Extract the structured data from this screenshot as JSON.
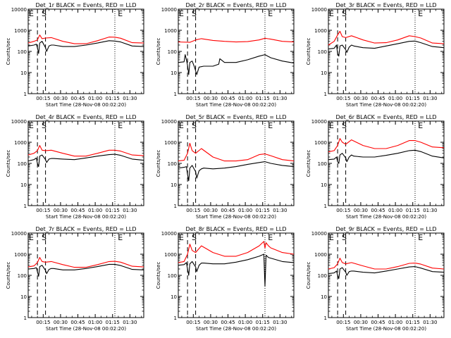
{
  "figure": {
    "common": {
      "ylabel": "Counts/sec",
      "xlabel": "Start Time (28-Nov-08 00:02:20)",
      "x_ticks": [
        "00:15",
        "00:30",
        "00:45",
        "01:00",
        "01:15",
        "01:30"
      ],
      "y_ticks": [
        "1",
        "10",
        "100",
        "1000",
        "10000"
      ],
      "markers": [
        "E",
        "S",
        "E"
      ]
    },
    "colors": {
      "events": "#000000",
      "lld": "#ff0000",
      "axes": "#000000",
      "background": "#ffffff"
    }
  },
  "chart_data": [
    {
      "type": "line",
      "title": "Det_1r BLACK = Events, RED = LLD",
      "xlabel": "Start Time (28-Nov-08 00:02:20)",
      "ylabel": "Counts/sec",
      "x_unit": "minutes after 00:02:20",
      "x_range": [
        0,
        100
      ],
      "yscale": "log",
      "ylim": [
        1,
        10000
      ],
      "vlines": {
        "dashed": [
          8,
          15
        ],
        "dotted": [
          75
        ]
      },
      "series": [
        {
          "name": "LLD",
          "color": "#ff0000",
          "x": [
            0,
            5,
            8,
            10,
            12,
            15,
            20,
            30,
            40,
            50,
            60,
            70,
            75,
            80,
            90,
            100
          ],
          "y": [
            250,
            300,
            350,
            600,
            400,
            430,
            450,
            300,
            230,
            230,
            320,
            480,
            470,
            420,
            260,
            250
          ]
        },
        {
          "name": "Events",
          "color": "#000000",
          "x": [
            0,
            5,
            7,
            8,
            9,
            10,
            12,
            15,
            16,
            18,
            20,
            22,
            30,
            40,
            50,
            60,
            70,
            75,
            80,
            90,
            100
          ],
          "y": [
            180,
            200,
            220,
            150,
            80,
            250,
            300,
            150,
            100,
            180,
            200,
            200,
            170,
            170,
            200,
            250,
            320,
            310,
            280,
            180,
            170
          ]
        }
      ]
    },
    {
      "type": "line",
      "title": "Det_2r BLACK = Events, RED = LLD",
      "xlabel": "Start Time (28-Nov-08 00:02:20)",
      "ylabel": "Counts/sec",
      "x_unit": "minutes after 00:02:20",
      "x_range": [
        0,
        100
      ],
      "yscale": "log",
      "ylim": [
        1,
        10000
      ],
      "vlines": {
        "dashed": [
          8,
          15
        ],
        "dotted": [
          75
        ]
      },
      "series": [
        {
          "name": "LLD",
          "color": "#ff0000",
          "x": [
            0,
            10,
            15,
            20,
            30,
            40,
            50,
            60,
            70,
            75,
            80,
            90,
            100
          ],
          "y": [
            280,
            270,
            350,
            400,
            330,
            300,
            280,
            290,
            350,
            420,
            380,
            300,
            280
          ]
        },
        {
          "name": "Events",
          "color": "#000000",
          "x": [
            0,
            5,
            6,
            7,
            8,
            9,
            10,
            12,
            14,
            15,
            16,
            18,
            22,
            30,
            35,
            36,
            40,
            50,
            60,
            70,
            75,
            80,
            90,
            100
          ],
          "y": [
            30,
            32,
            70,
            40,
            22,
            8,
            30,
            35,
            18,
            12,
            8,
            18,
            20,
            20,
            25,
            45,
            30,
            30,
            40,
            60,
            70,
            50,
            35,
            28
          ]
        }
      ]
    },
    {
      "type": "line",
      "title": "Det_3r BLACK = Events, RED = LLD",
      "xlabel": "Start Time (28-Nov-08 00:02:20)",
      "ylabel": "Counts/sec",
      "x_unit": "minutes after 00:02:20",
      "x_range": [
        0,
        100
      ],
      "yscale": "log",
      "ylim": [
        1,
        10000
      ],
      "vlines": {
        "dashed": [
          8,
          15
        ],
        "dotted": [
          75
        ]
      },
      "series": [
        {
          "name": "LLD",
          "color": "#ff0000",
          "x": [
            0,
            5,
            8,
            10,
            12,
            15,
            20,
            30,
            40,
            50,
            60,
            70,
            75,
            80,
            90,
            100
          ],
          "y": [
            200,
            300,
            600,
            900,
            500,
            450,
            550,
            350,
            250,
            260,
            350,
            550,
            500,
            430,
            250,
            230
          ]
        },
        {
          "name": "Events",
          "color": "#000000",
          "x": [
            0,
            5,
            7,
            8,
            9,
            10,
            12,
            15,
            16,
            18,
            20,
            22,
            30,
            40,
            50,
            60,
            70,
            75,
            80,
            90,
            100
          ],
          "y": [
            130,
            140,
            200,
            80,
            60,
            180,
            200,
            120,
            90,
            160,
            200,
            180,
            150,
            140,
            180,
            230,
            300,
            310,
            260,
            170,
            150
          ]
        }
      ]
    },
    {
      "type": "line",
      "title": "Det_4r BLACK = Events, RED = LLD",
      "xlabel": "Start Time (28-Nov-08 00:02:20)",
      "ylabel": "Counts/sec",
      "x_unit": "minutes after 00:02:20",
      "x_range": [
        0,
        100
      ],
      "yscale": "log",
      "ylim": [
        1,
        10000
      ],
      "vlines": {
        "dashed": [
          8,
          15
        ],
        "dotted": [
          75
        ]
      },
      "series": [
        {
          "name": "LLD",
          "color": "#ff0000",
          "x": [
            0,
            5,
            8,
            10,
            12,
            15,
            20,
            30,
            40,
            50,
            60,
            70,
            75,
            80,
            90,
            100
          ],
          "y": [
            250,
            300,
            400,
            700,
            420,
            400,
            420,
            300,
            220,
            220,
            300,
            420,
            420,
            380,
            250,
            230
          ]
        },
        {
          "name": "Events",
          "color": "#000000",
          "x": [
            0,
            5,
            7,
            8,
            9,
            10,
            12,
            15,
            16,
            18,
            20,
            22,
            30,
            40,
            50,
            60,
            70,
            75,
            80,
            90,
            100
          ],
          "y": [
            130,
            150,
            180,
            100,
            70,
            220,
            250,
            150,
            110,
            160,
            170,
            170,
            160,
            150,
            180,
            220,
            260,
            270,
            240,
            160,
            140
          ]
        }
      ]
    },
    {
      "type": "line",
      "title": "Det_5r BLACK = Events, RED = LLD",
      "xlabel": "Start Time (28-Nov-08 00:02:20)",
      "ylabel": "Counts/sec",
      "x_unit": "minutes after 00:02:20",
      "x_range": [
        0,
        100
      ],
      "yscale": "log",
      "ylim": [
        1,
        10000
      ],
      "vlines": {
        "dashed": [
          8,
          15
        ],
        "dotted": [
          75
        ]
      },
      "series": [
        {
          "name": "LLD",
          "color": "#ff0000",
          "x": [
            0,
            5,
            8,
            10,
            12,
            15,
            20,
            30,
            40,
            50,
            60,
            70,
            75,
            80,
            90,
            100
          ],
          "y": [
            130,
            140,
            300,
            900,
            400,
            300,
            500,
            200,
            130,
            130,
            150,
            260,
            280,
            230,
            150,
            130
          ]
        },
        {
          "name": "Events",
          "color": "#000000",
          "x": [
            0,
            5,
            7,
            8,
            9,
            10,
            12,
            15,
            16,
            18,
            20,
            22,
            30,
            40,
            50,
            60,
            70,
            75,
            80,
            90,
            100
          ],
          "y": [
            60,
            65,
            70,
            30,
            15,
            60,
            80,
            40,
            20,
            45,
            55,
            60,
            55,
            60,
            70,
            90,
            110,
            120,
            100,
            80,
            70
          ]
        }
      ]
    },
    {
      "type": "line",
      "title": "Det_6r BLACK = Events, RED = LLD",
      "xlabel": "Start Time (28-Nov-08 00:02:20)",
      "ylabel": "Counts/sec",
      "x_unit": "minutes after 00:02:20",
      "x_range": [
        0,
        100
      ],
      "yscale": "log",
      "ylim": [
        1,
        10000
      ],
      "vlines": {
        "dashed": [
          8,
          15
        ],
        "dotted": [
          75
        ]
      },
      "series": [
        {
          "name": "LLD",
          "color": "#ff0000",
          "x": [
            0,
            5,
            8,
            10,
            12,
            15,
            20,
            30,
            40,
            50,
            60,
            70,
            75,
            80,
            90,
            100
          ],
          "y": [
            350,
            400,
            700,
            1500,
            1000,
            800,
            1300,
            700,
            500,
            500,
            700,
            1200,
            1200,
            1000,
            600,
            550
          ]
        },
        {
          "name": "Events",
          "color": "#000000",
          "x": [
            0,
            5,
            7,
            8,
            9,
            10,
            12,
            15,
            16,
            18,
            20,
            22,
            30,
            40,
            50,
            60,
            70,
            75,
            80,
            90,
            100
          ],
          "y": [
            150,
            160,
            200,
            120,
            100,
            250,
            300,
            180,
            120,
            200,
            250,
            220,
            200,
            200,
            240,
            300,
            400,
            420,
            360,
            220,
            180
          ]
        }
      ]
    },
    {
      "type": "line",
      "title": "Det_7r BLACK = Events, RED = LLD",
      "xlabel": "Start Time (28-Nov-08 00:02:20)",
      "ylabel": "Counts/sec",
      "x_unit": "minutes after 00:02:20",
      "x_range": [
        0,
        100
      ],
      "yscale": "log",
      "ylim": [
        1,
        10000
      ],
      "vlines": {
        "dashed": [
          8,
          15
        ],
        "dotted": [
          75
        ]
      },
      "series": [
        {
          "name": "LLD",
          "color": "#ff0000",
          "x": [
            0,
            5,
            8,
            10,
            12,
            15,
            20,
            30,
            40,
            50,
            60,
            70,
            75,
            80,
            90,
            100
          ],
          "y": [
            250,
            280,
            400,
            700,
            450,
            420,
            450,
            320,
            240,
            240,
            320,
            450,
            460,
            420,
            270,
            250
          ]
        },
        {
          "name": "Events",
          "color": "#000000",
          "x": [
            0,
            5,
            7,
            8,
            9,
            10,
            12,
            15,
            16,
            18,
            20,
            22,
            30,
            40,
            50,
            60,
            70,
            75,
            80,
            90,
            100
          ],
          "y": [
            200,
            210,
            230,
            150,
            90,
            260,
            300,
            170,
            120,
            190,
            210,
            210,
            180,
            180,
            210,
            260,
            330,
            330,
            290,
            190,
            180
          ]
        }
      ]
    },
    {
      "type": "line",
      "title": "Det_8r BLACK = Events, RED = LLD",
      "xlabel": "Start Time (28-Nov-08 00:02:20)",
      "ylabel": "Counts/sec",
      "x_unit": "minutes after 00:02:20",
      "x_range": [
        0,
        100
      ],
      "yscale": "log",
      "ylim": [
        1,
        10000
      ],
      "vlines": {
        "dashed": [
          8,
          15
        ],
        "dotted": [
          75
        ]
      },
      "series": [
        {
          "name": "LLD",
          "color": "#ff0000",
          "x": [
            0,
            5,
            8,
            10,
            12,
            15,
            20,
            30,
            40,
            50,
            60,
            70,
            74,
            75,
            76,
            78,
            80,
            90,
            100
          ],
          "y": [
            400,
            450,
            1000,
            3000,
            1500,
            1200,
            2500,
            1200,
            800,
            800,
            1200,
            2500,
            4000,
            2000,
            3500,
            2500,
            2000,
            1200,
            1000
          ]
        },
        {
          "name": "Events",
          "color": "#000000",
          "x": [
            0,
            5,
            7,
            8,
            9,
            10,
            12,
            15,
            16,
            18,
            20,
            22,
            30,
            40,
            50,
            60,
            70,
            74,
            75,
            76,
            78,
            80,
            90,
            100
          ],
          "y": [
            300,
            320,
            400,
            200,
            100,
            350,
            450,
            250,
            150,
            300,
            380,
            380,
            350,
            350,
            420,
            550,
            800,
            1000,
            30,
            900,
            700,
            650,
            450,
            400
          ]
        }
      ]
    },
    {
      "type": "line",
      "title": "Det_9r BLACK = Events, RED = LLD",
      "xlabel": "Start Time (28-Nov-08 00:02:20)",
      "ylabel": "Counts/sec",
      "x_unit": "minutes after 00:02:20",
      "x_range": [
        0,
        100
      ],
      "yscale": "log",
      "ylim": [
        1,
        10000
      ],
      "vlines": {
        "dashed": [
          8,
          15
        ],
        "dotted": [
          75
        ]
      },
      "series": [
        {
          "name": "LLD",
          "color": "#ff0000",
          "x": [
            0,
            5,
            8,
            10,
            12,
            15,
            20,
            30,
            40,
            50,
            60,
            70,
            75,
            80,
            90,
            100
          ],
          "y": [
            200,
            230,
            350,
            650,
            400,
            350,
            400,
            280,
            200,
            200,
            260,
            370,
            380,
            340,
            220,
            200
          ]
        },
        {
          "name": "Events",
          "color": "#000000",
          "x": [
            0,
            5,
            7,
            8,
            9,
            10,
            12,
            15,
            16,
            18,
            20,
            22,
            30,
            40,
            50,
            60,
            70,
            75,
            80,
            90,
            100
          ],
          "y": [
            120,
            130,
            160,
            100,
            70,
            200,
            230,
            140,
            100,
            150,
            160,
            160,
            140,
            130,
            160,
            200,
            250,
            260,
            220,
            150,
            140
          ]
        }
      ]
    }
  ]
}
